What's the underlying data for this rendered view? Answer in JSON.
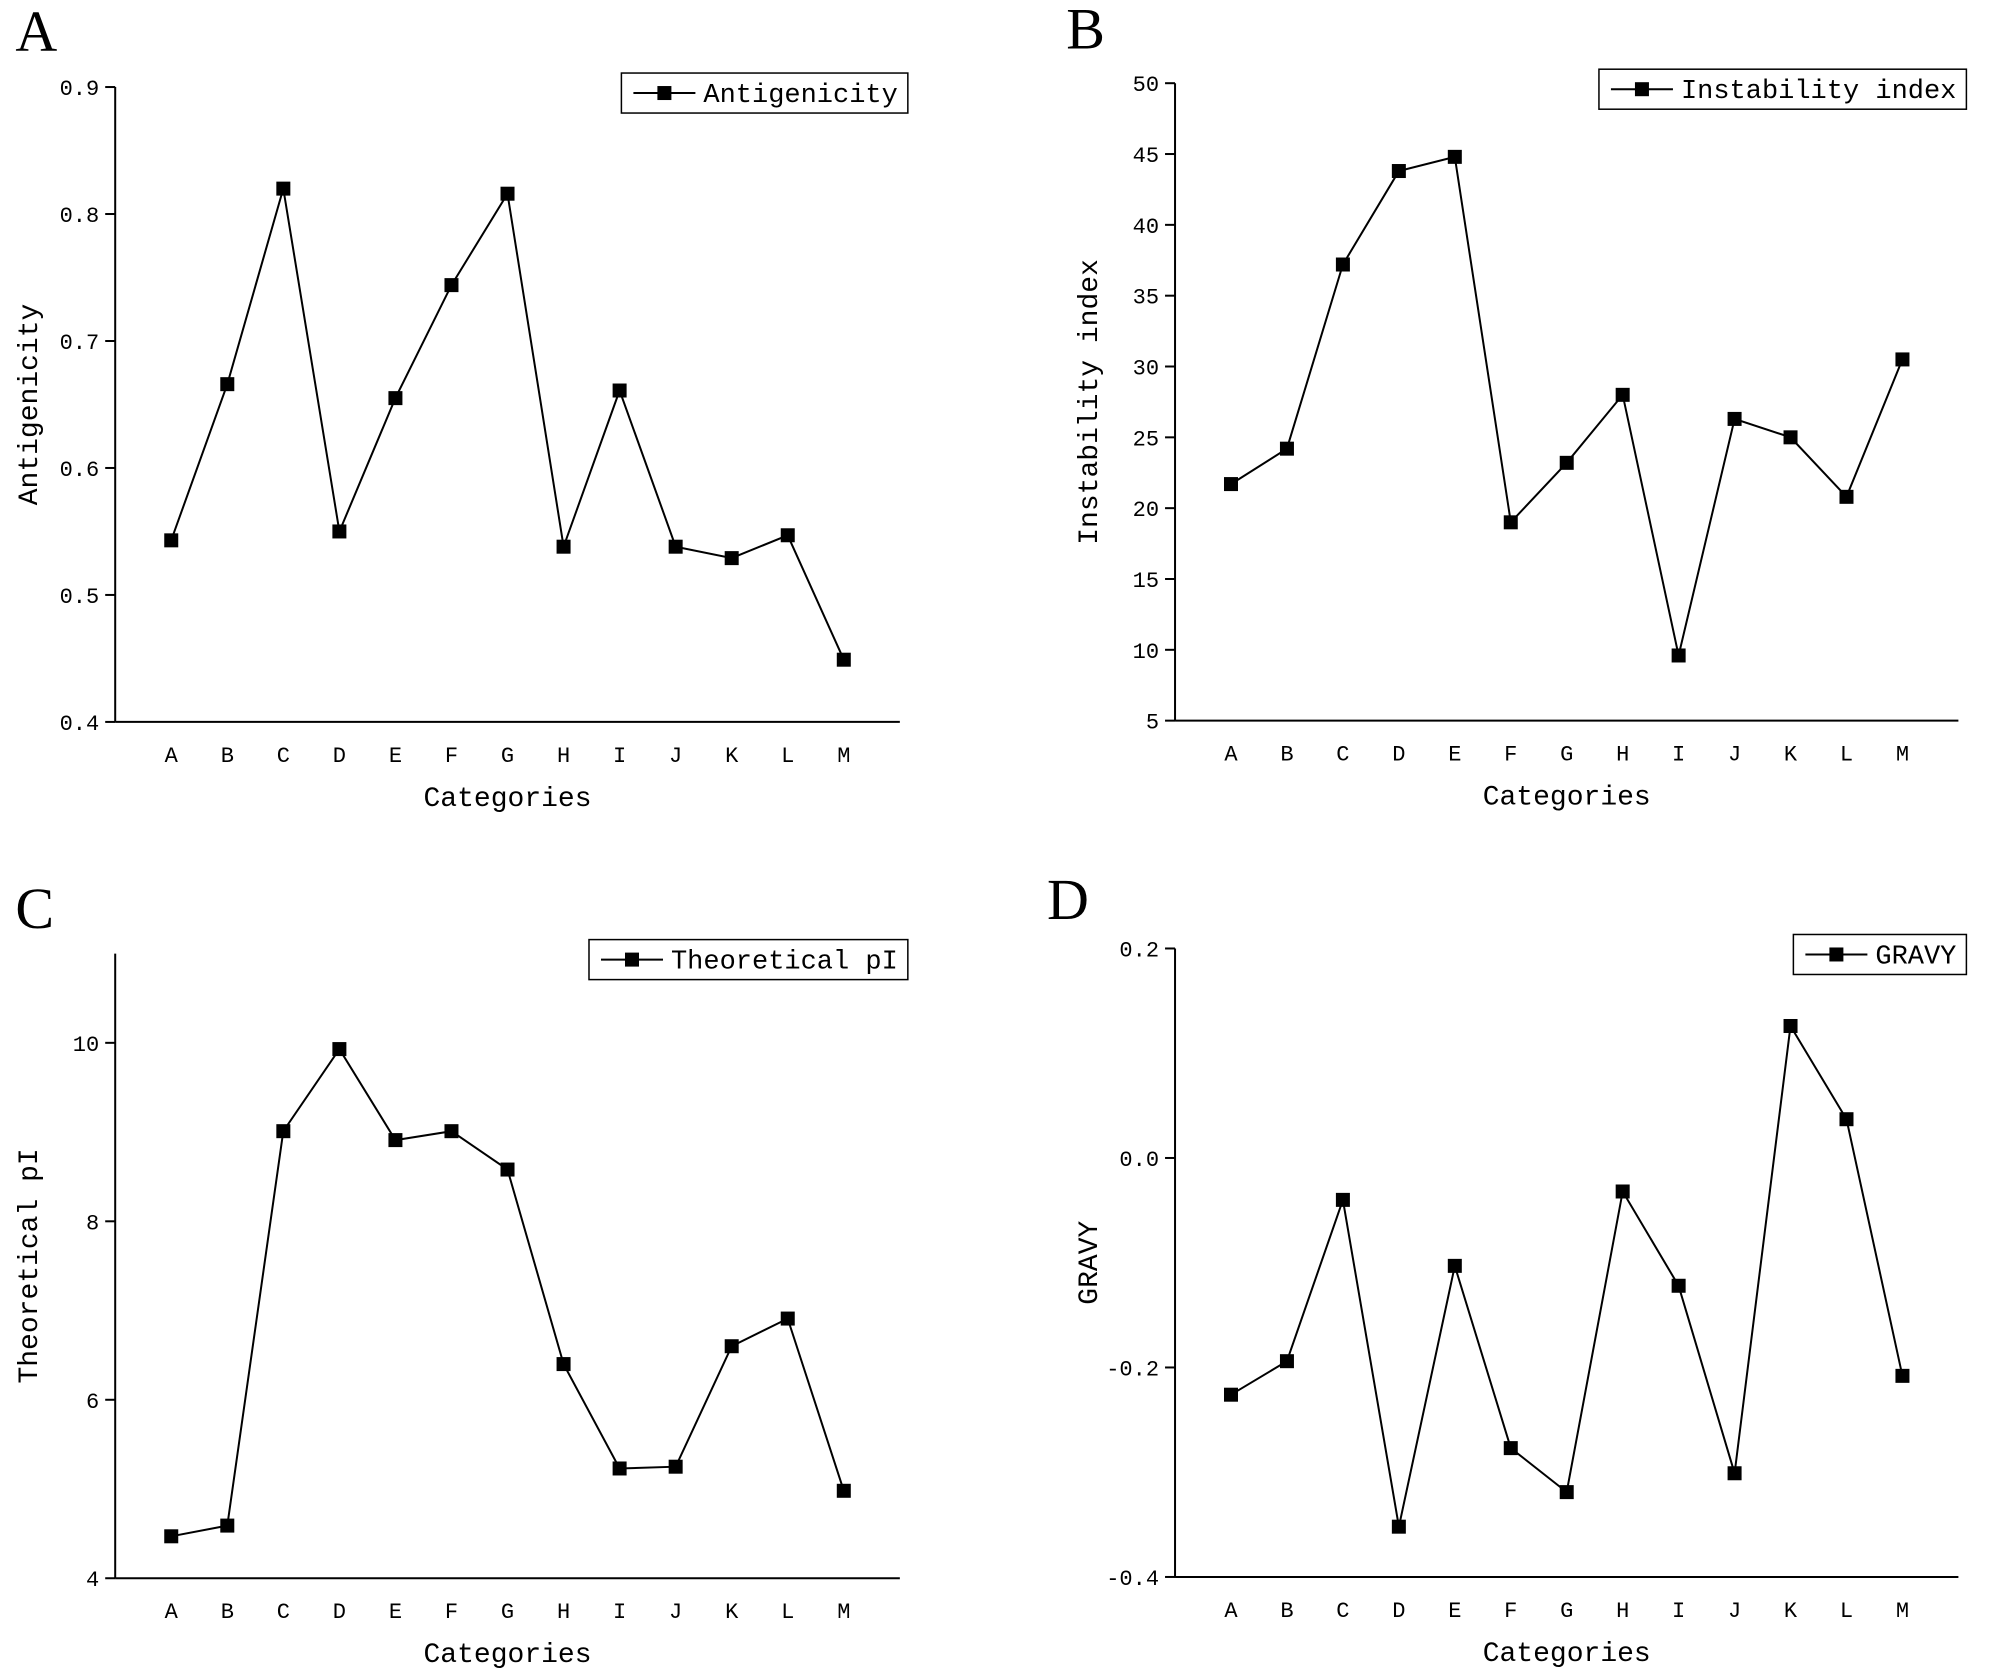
{
  "chart_data": [
    {
      "type": "line",
      "panel": "A",
      "xlabel": "Categories",
      "ylabel": "Antigenicity",
      "categories": [
        "A",
        "B",
        "C",
        "D",
        "E",
        "F",
        "G",
        "H",
        "I",
        "J",
        "K",
        "L",
        "M"
      ],
      "series": [
        {
          "name": "Antigenicity",
          "color": "#000000",
          "values": [
            0.543,
            0.666,
            0.82,
            0.55,
            0.655,
            0.744,
            0.816,
            0.538,
            0.661,
            0.538,
            0.529,
            0.547,
            0.449
          ]
        }
      ],
      "ylim": [
        0.4,
        0.9
      ],
      "yticks": [
        0.4,
        0.5,
        0.6,
        0.7,
        0.8,
        0.9
      ],
      "legend": "upper right"
    },
    {
      "type": "line",
      "panel": "B",
      "xlabel": "Categories",
      "ylabel": "Instability index",
      "categories": [
        "A",
        "B",
        "C",
        "D",
        "E",
        "F",
        "G",
        "H",
        "I",
        "J",
        "K",
        "L",
        "M"
      ],
      "series": [
        {
          "name": "Instability index",
          "color": "#000000",
          "values": [
            21.7,
            24.2,
            37.2,
            43.8,
            44.8,
            19.0,
            23.2,
            28.0,
            9.6,
            26.3,
            25.0,
            20.8,
            30.5
          ]
        }
      ],
      "ylim": [
        5,
        50
      ],
      "yticks": [
        5,
        10,
        15,
        20,
        25,
        30,
        35,
        40,
        45,
        50
      ],
      "legend": "upper right"
    },
    {
      "type": "line",
      "panel": "C",
      "xlabel": "Categories",
      "ylabel": "Theoretical pI",
      "categories": [
        "A",
        "B",
        "C",
        "D",
        "E",
        "F",
        "G",
        "H",
        "I",
        "J",
        "K",
        "L",
        "M"
      ],
      "series": [
        {
          "name": "Theoretical pI",
          "color": "#000000",
          "values": [
            4.47,
            4.59,
            9.01,
            9.93,
            8.91,
            9.01,
            8.58,
            6.4,
            5.23,
            5.25,
            6.6,
            6.91,
            4.98
          ]
        }
      ],
      "ylim": [
        4,
        11
      ],
      "yticks": [
        4,
        6,
        8,
        10
      ],
      "legend": "upper right"
    },
    {
      "type": "line",
      "panel": "D",
      "xlabel": "Categories",
      "ylabel": "GRAVY",
      "categories": [
        "A",
        "B",
        "C",
        "D",
        "E",
        "F",
        "G",
        "H",
        "I",
        "J",
        "K",
        "L",
        "M"
      ],
      "series": [
        {
          "name": "GRAVY",
          "color": "#000000",
          "values": [
            -0.226,
            -0.194,
            -0.04,
            -0.352,
            -0.103,
            -0.277,
            -0.319,
            -0.032,
            -0.122,
            -0.301,
            0.126,
            0.037,
            -0.208
          ]
        }
      ],
      "ylim": [
        -0.4,
        0.2
      ],
      "yticks": [
        -0.4,
        -0.2,
        {
          "value": 0,
          "label": "0.0"
        },
        0.2
      ],
      "legend": "upper right"
    }
  ]
}
